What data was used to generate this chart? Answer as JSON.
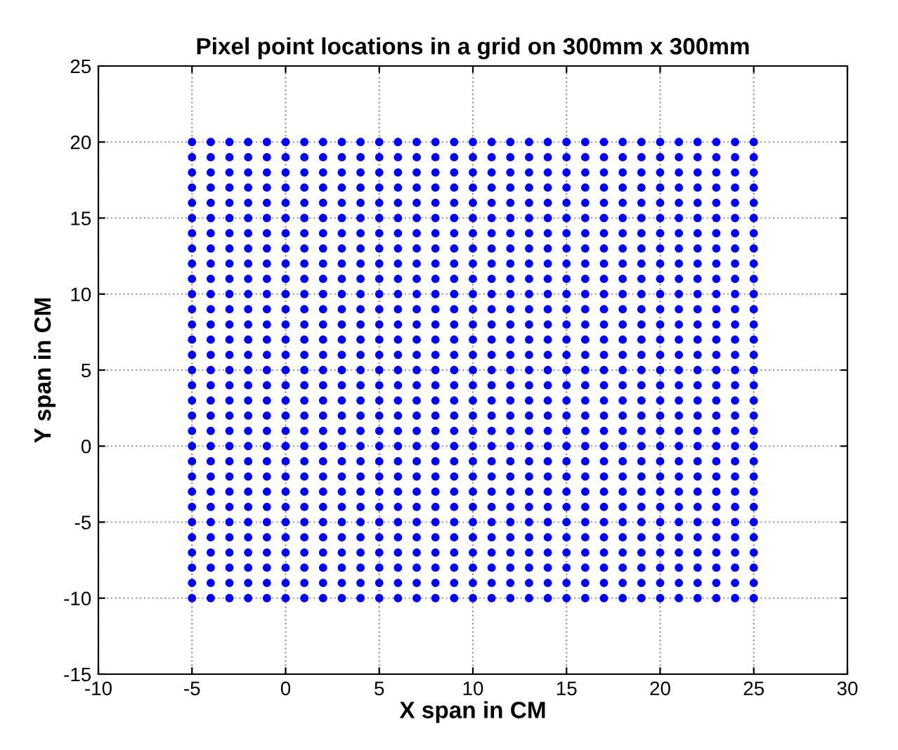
{
  "chart_data": {
    "type": "scatter",
    "title": "Pixel point locations in a grid on 300mm x 300mm",
    "xlabel": "X span in CM",
    "ylabel": "Y span in CM",
    "x": [
      -5,
      -4,
      -3,
      -2,
      -1,
      0,
      1,
      2,
      3,
      4,
      5,
      6,
      7,
      8,
      9,
      10,
      11,
      12,
      13,
      14,
      15,
      16,
      17,
      18,
      19,
      20,
      21,
      22,
      23,
      24,
      25
    ],
    "series": [
      {
        "color": "#0000ff",
        "values": [
          20,
          20,
          20,
          20,
          20,
          20,
          20,
          20,
          20,
          20,
          20,
          20,
          20,
          20,
          20,
          20,
          20,
          20,
          20,
          20,
          20,
          20,
          20,
          20,
          20,
          20,
          20,
          20,
          20,
          20,
          20
        ]
      },
      {
        "color": "#0000ff",
        "values": [
          19,
          19,
          19,
          19,
          19,
          19,
          19,
          19,
          19,
          19,
          19,
          19,
          19,
          19,
          19,
          19,
          19,
          19,
          19,
          19,
          19,
          19,
          19,
          19,
          19,
          19,
          19,
          19,
          19,
          19,
          19
        ]
      },
      {
        "color": "#0000ff",
        "values": [
          18,
          18,
          18,
          18,
          18,
          18,
          18,
          18,
          18,
          18,
          18,
          18,
          18,
          18,
          18,
          18,
          18,
          18,
          18,
          18,
          18,
          18,
          18,
          18,
          18,
          18,
          18,
          18,
          18,
          18,
          18
        ]
      },
      {
        "color": "#0000ff",
        "values": [
          17,
          17,
          17,
          17,
          17,
          17,
          17,
          17,
          17,
          17,
          17,
          17,
          17,
          17,
          17,
          17,
          17,
          17,
          17,
          17,
          17,
          17,
          17,
          17,
          17,
          17,
          17,
          17,
          17,
          17,
          17
        ]
      },
      {
        "color": "#0000ff",
        "values": [
          16,
          16,
          16,
          16,
          16,
          16,
          16,
          16,
          16,
          16,
          16,
          16,
          16,
          16,
          16,
          16,
          16,
          16,
          16,
          16,
          16,
          16,
          16,
          16,
          16,
          16,
          16,
          16,
          16,
          16,
          16
        ]
      },
      {
        "color": "#0000ff",
        "values": [
          15,
          15,
          15,
          15,
          15,
          15,
          15,
          15,
          15,
          15,
          15,
          15,
          15,
          15,
          15,
          15,
          15,
          15,
          15,
          15,
          15,
          15,
          15,
          15,
          15,
          15,
          15,
          15,
          15,
          15,
          15
        ]
      },
      {
        "color": "#0000ff",
        "values": [
          14,
          14,
          14,
          14,
          14,
          14,
          14,
          14,
          14,
          14,
          14,
          14,
          14,
          14,
          14,
          14,
          14,
          14,
          14,
          14,
          14,
          14,
          14,
          14,
          14,
          14,
          14,
          14,
          14,
          14,
          14
        ]
      },
      {
        "color": "#0000ff",
        "values": [
          13,
          13,
          13,
          13,
          13,
          13,
          13,
          13,
          13,
          13,
          13,
          13,
          13,
          13,
          13,
          13,
          13,
          13,
          13,
          13,
          13,
          13,
          13,
          13,
          13,
          13,
          13,
          13,
          13,
          13,
          13
        ]
      },
      {
        "color": "#0000ff",
        "values": [
          12,
          12,
          12,
          12,
          12,
          12,
          12,
          12,
          12,
          12,
          12,
          12,
          12,
          12,
          12,
          12,
          12,
          12,
          12,
          12,
          12,
          12,
          12,
          12,
          12,
          12,
          12,
          12,
          12,
          12,
          12
        ]
      },
      {
        "color": "#0000ff",
        "values": [
          11,
          11,
          11,
          11,
          11,
          11,
          11,
          11,
          11,
          11,
          11,
          11,
          11,
          11,
          11,
          11,
          11,
          11,
          11,
          11,
          11,
          11,
          11,
          11,
          11,
          11,
          11,
          11,
          11,
          11,
          11
        ]
      },
      {
        "color": "#0000ff",
        "values": [
          10,
          10,
          10,
          10,
          10,
          10,
          10,
          10,
          10,
          10,
          10,
          10,
          10,
          10,
          10,
          10,
          10,
          10,
          10,
          10,
          10,
          10,
          10,
          10,
          10,
          10,
          10,
          10,
          10,
          10,
          10
        ]
      },
      {
        "color": "#0000ff",
        "values": [
          9,
          9,
          9,
          9,
          9,
          9,
          9,
          9,
          9,
          9,
          9,
          9,
          9,
          9,
          9,
          9,
          9,
          9,
          9,
          9,
          9,
          9,
          9,
          9,
          9,
          9,
          9,
          9,
          9,
          9,
          9
        ]
      },
      {
        "color": "#0000ff",
        "values": [
          8,
          8,
          8,
          8,
          8,
          8,
          8,
          8,
          8,
          8,
          8,
          8,
          8,
          8,
          8,
          8,
          8,
          8,
          8,
          8,
          8,
          8,
          8,
          8,
          8,
          8,
          8,
          8,
          8,
          8,
          8
        ]
      },
      {
        "color": "#0000ff",
        "values": [
          7,
          7,
          7,
          7,
          7,
          7,
          7,
          7,
          7,
          7,
          7,
          7,
          7,
          7,
          7,
          7,
          7,
          7,
          7,
          7,
          7,
          7,
          7,
          7,
          7,
          7,
          7,
          7,
          7,
          7,
          7
        ]
      },
      {
        "color": "#0000ff",
        "values": [
          6,
          6,
          6,
          6,
          6,
          6,
          6,
          6,
          6,
          6,
          6,
          6,
          6,
          6,
          6,
          6,
          6,
          6,
          6,
          6,
          6,
          6,
          6,
          6,
          6,
          6,
          6,
          6,
          6,
          6,
          6
        ]
      },
      {
        "color": "#0000ff",
        "values": [
          5,
          5,
          5,
          5,
          5,
          5,
          5,
          5,
          5,
          5,
          5,
          5,
          5,
          5,
          5,
          5,
          5,
          5,
          5,
          5,
          5,
          5,
          5,
          5,
          5,
          5,
          5,
          5,
          5,
          5,
          5
        ]
      },
      {
        "color": "#0000ff",
        "values": [
          4,
          4,
          4,
          4,
          4,
          4,
          4,
          4,
          4,
          4,
          4,
          4,
          4,
          4,
          4,
          4,
          4,
          4,
          4,
          4,
          4,
          4,
          4,
          4,
          4,
          4,
          4,
          4,
          4,
          4,
          4
        ]
      },
      {
        "color": "#0000ff",
        "values": [
          3,
          3,
          3,
          3,
          3,
          3,
          3,
          3,
          3,
          3,
          3,
          3,
          3,
          3,
          3,
          3,
          3,
          3,
          3,
          3,
          3,
          3,
          3,
          3,
          3,
          3,
          3,
          3,
          3,
          3,
          3
        ]
      },
      {
        "color": "#0000ff",
        "values": [
          2,
          2,
          2,
          2,
          2,
          2,
          2,
          2,
          2,
          2,
          2,
          2,
          2,
          2,
          2,
          2,
          2,
          2,
          2,
          2,
          2,
          2,
          2,
          2,
          2,
          2,
          2,
          2,
          2,
          2,
          2
        ]
      },
      {
        "color": "#0000ff",
        "values": [
          1,
          1,
          1,
          1,
          1,
          1,
          1,
          1,
          1,
          1,
          1,
          1,
          1,
          1,
          1,
          1,
          1,
          1,
          1,
          1,
          1,
          1,
          1,
          1,
          1,
          1,
          1,
          1,
          1,
          1,
          1
        ]
      },
      {
        "color": "#0000ff",
        "values": [
          0,
          0,
          0,
          0,
          0,
          0,
          0,
          0,
          0,
          0,
          0,
          0,
          0,
          0,
          0,
          0,
          0,
          0,
          0,
          0,
          0,
          0,
          0,
          0,
          0,
          0,
          0,
          0,
          0,
          0,
          0
        ]
      },
      {
        "color": "#0000ff",
        "values": [
          -1,
          -1,
          -1,
          -1,
          -1,
          -1,
          -1,
          -1,
          -1,
          -1,
          -1,
          -1,
          -1,
          -1,
          -1,
          -1,
          -1,
          -1,
          -1,
          -1,
          -1,
          -1,
          -1,
          -1,
          -1,
          -1,
          -1,
          -1,
          -1,
          -1,
          -1
        ]
      },
      {
        "color": "#0000ff",
        "values": [
          -2,
          -2,
          -2,
          -2,
          -2,
          -2,
          -2,
          -2,
          -2,
          -2,
          -2,
          -2,
          -2,
          -2,
          -2,
          -2,
          -2,
          -2,
          -2,
          -2,
          -2,
          -2,
          -2,
          -2,
          -2,
          -2,
          -2,
          -2,
          -2,
          -2,
          -2
        ]
      },
      {
        "color": "#0000ff",
        "values": [
          -3,
          -3,
          -3,
          -3,
          -3,
          -3,
          -3,
          -3,
          -3,
          -3,
          -3,
          -3,
          -3,
          -3,
          -3,
          -3,
          -3,
          -3,
          -3,
          -3,
          -3,
          -3,
          -3,
          -3,
          -3,
          -3,
          -3,
          -3,
          -3,
          -3,
          -3
        ]
      },
      {
        "color": "#0000ff",
        "values": [
          -4,
          -4,
          -4,
          -4,
          -4,
          -4,
          -4,
          -4,
          -4,
          -4,
          -4,
          -4,
          -4,
          -4,
          -4,
          -4,
          -4,
          -4,
          -4,
          -4,
          -4,
          -4,
          -4,
          -4,
          -4,
          -4,
          -4,
          -4,
          -4,
          -4,
          -4
        ]
      },
      {
        "color": "#0000ff",
        "values": [
          -5,
          -5,
          -5,
          -5,
          -5,
          -5,
          -5,
          -5,
          -5,
          -5,
          -5,
          -5,
          -5,
          -5,
          -5,
          -5,
          -5,
          -5,
          -5,
          -5,
          -5,
          -5,
          -5,
          -5,
          -5,
          -5,
          -5,
          -5,
          -5,
          -5,
          -5
        ]
      },
      {
        "color": "#0000ff",
        "values": [
          -6,
          -6,
          -6,
          -6,
          -6,
          -6,
          -6,
          -6,
          -6,
          -6,
          -6,
          -6,
          -6,
          -6,
          -6,
          -6,
          -6,
          -6,
          -6,
          -6,
          -6,
          -6,
          -6,
          -6,
          -6,
          -6,
          -6,
          -6,
          -6,
          -6,
          -6
        ]
      },
      {
        "color": "#0000ff",
        "values": [
          -7,
          -7,
          -7,
          -7,
          -7,
          -7,
          -7,
          -7,
          -7,
          -7,
          -7,
          -7,
          -7,
          -7,
          -7,
          -7,
          -7,
          -7,
          -7,
          -7,
          -7,
          -7,
          -7,
          -7,
          -7,
          -7,
          -7,
          -7,
          -7,
          -7,
          -7
        ]
      },
      {
        "color": "#0000ff",
        "values": [
          -8,
          -8,
          -8,
          -8,
          -8,
          -8,
          -8,
          -8,
          -8,
          -8,
          -8,
          -8,
          -8,
          -8,
          -8,
          -8,
          -8,
          -8,
          -8,
          -8,
          -8,
          -8,
          -8,
          -8,
          -8,
          -8,
          -8,
          -8,
          -8,
          -8,
          -8
        ]
      },
      {
        "color": "#0000ff",
        "values": [
          -9,
          -9,
          -9,
          -9,
          -9,
          -9,
          -9,
          -9,
          -9,
          -9,
          -9,
          -9,
          -9,
          -9,
          -9,
          -9,
          -9,
          -9,
          -9,
          -9,
          -9,
          -9,
          -9,
          -9,
          -9,
          -9,
          -9,
          -9,
          -9,
          -9,
          -9
        ]
      },
      {
        "color": "#0000ff",
        "values": [
          -10,
          -10,
          -10,
          -10,
          -10,
          -10,
          -10,
          -10,
          -10,
          -10,
          -10,
          -10,
          -10,
          -10,
          -10,
          -10,
          -10,
          -10,
          -10,
          -10,
          -10,
          -10,
          -10,
          -10,
          -10,
          -10,
          -10,
          -10,
          -10,
          -10,
          -10
        ]
      }
    ],
    "xlim": [
      -10,
      30
    ],
    "xticks": [
      -10,
      -5,
      0,
      5,
      10,
      15,
      20,
      25,
      30
    ],
    "ylim": [
      -15,
      25
    ],
    "yticks": [
      -15,
      -10,
      -5,
      0,
      5,
      10,
      15,
      20,
      25
    ],
    "grid": true,
    "marker": "circle"
  }
}
